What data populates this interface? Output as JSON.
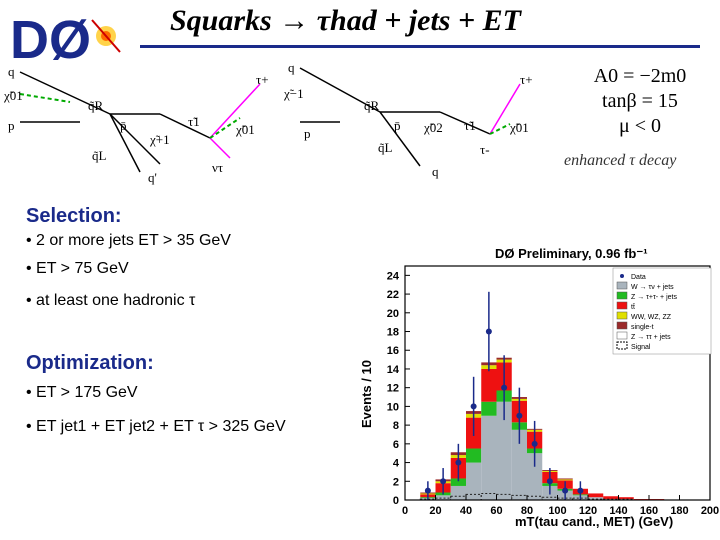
{
  "header": {
    "title": "Squarks → τhad + jets + ET",
    "logo_text": "DØ"
  },
  "params": {
    "a0": "A0 = −2m0",
    "tanb": "tanβ = 15",
    "mu": "μ < 0",
    "note": "enhanced τ decay"
  },
  "diagrams": {
    "labels": [
      "q",
      "χ̃01",
      "p",
      "q̃R",
      "p̄",
      "χ̃+1",
      "τ̃1",
      "χ̃01",
      "τ+",
      "q̃L",
      "q'",
      "ντ",
      "q",
      "χ̃−1",
      "q̃R",
      "p̄",
      "χ̃02",
      "τ̃1",
      "χ̃01",
      "τ+",
      "p",
      "q̃L",
      "q",
      "τ-"
    ]
  },
  "selection": {
    "heading": "Selection:",
    "bullets": [
      "• 2 or more jets  ET > 35 GeV",
      "• ET > 75 GeV",
      "• at least one hadronic τ"
    ]
  },
  "optimization": {
    "heading": "Optimization:",
    "bullets": [
      "• ET > 175 GeV",
      "• ET jet1 + ET jet2 + ET τ > 325 GeV"
    ]
  },
  "plot": {
    "header": "DØ Preliminary, 0.96 fb⁻¹",
    "ylabel": "Events / 10",
    "xlabel": "mT(tau cand., MET) (GeV)",
    "colors": {
      "W": "#a9b4bd",
      "Z": "#22bb22",
      "tt": "#ee1111",
      "WW": "#e0e000",
      "st": "#9a2a2a",
      "sig": "#222222"
    }
  },
  "chart_data": {
    "type": "bar",
    "title": "DØ Preliminary, 0.96 fb⁻¹",
    "xlabel": "mT(tau cand., MET) (GeV)",
    "ylabel": "Events / 10",
    "xlim": [
      0,
      200
    ],
    "ylim": [
      0,
      25
    ],
    "xticks": [
      "0",
      "20",
      "40",
      "60",
      "80",
      "100",
      "120",
      "140",
      "160",
      "180",
      "200"
    ],
    "yticks": [
      "0",
      "2",
      "4",
      "6",
      "8",
      "10",
      "12",
      "14",
      "16",
      "18",
      "20",
      "22",
      "24"
    ],
    "bins": [
      15,
      25,
      35,
      45,
      55,
      65,
      75,
      85,
      95,
      105,
      115,
      125,
      135,
      145,
      155,
      165,
      175,
      185,
      195
    ],
    "series": [
      {
        "name": "W → τν + jets",
        "values": [
          0.2,
          0.5,
          1.5,
          4.0,
          9.0,
          10.5,
          7.5,
          5.0,
          1.5,
          1.0,
          0.5,
          0.3,
          0.1,
          0.1,
          0,
          0,
          0,
          0,
          0
        ]
      },
      {
        "name": "Z → τ+τ- + jets",
        "values": [
          0.1,
          0.3,
          0.8,
          1.5,
          1.5,
          1.2,
          0.8,
          0.5,
          0.3,
          0.2,
          0.1,
          0,
          0,
          0,
          0,
          0,
          0,
          0,
          0
        ]
      },
      {
        "name": "tt̄",
        "values": [
          0.3,
          1.0,
          2.2,
          3.3,
          3.5,
          3.0,
          2.3,
          1.8,
          1.2,
          0.9,
          0.6,
          0.4,
          0.3,
          0.2,
          0.1,
          0.1,
          0,
          0,
          0
        ]
      },
      {
        "name": "WW, WZ, ZZ",
        "values": [
          0.1,
          0.2,
          0.3,
          0.4,
          0.4,
          0.3,
          0.2,
          0.2,
          0.1,
          0.1,
          0,
          0,
          0,
          0,
          0,
          0,
          0,
          0,
          0
        ]
      },
      {
        "name": "single-t",
        "values": [
          0.1,
          0.2,
          0.3,
          0.3,
          0.3,
          0.2,
          0.2,
          0.1,
          0.1,
          0.1,
          0,
          0,
          0,
          0,
          0,
          0,
          0,
          0,
          0
        ]
      }
    ],
    "data": [
      1,
      2,
      4,
      10,
      18,
      12,
      9,
      6,
      2,
      1,
      1,
      0,
      0,
      0,
      0,
      0,
      0,
      0,
      0
    ],
    "signal": [
      0.1,
      0.2,
      0.4,
      0.6,
      0.7,
      0.6,
      0.5,
      0.4,
      0.3,
      0.2,
      0.2,
      0.1,
      0.1,
      0.1,
      0,
      0,
      0,
      0,
      0
    ],
    "legend": [
      "Data",
      "W → τν + jets",
      "Z → τ+τ- + jets",
      "tt̄",
      "WW, WZ, ZZ",
      "single-t",
      "Z → ττ + jets",
      "Signal"
    ],
    "legend_position": "top-right"
  }
}
